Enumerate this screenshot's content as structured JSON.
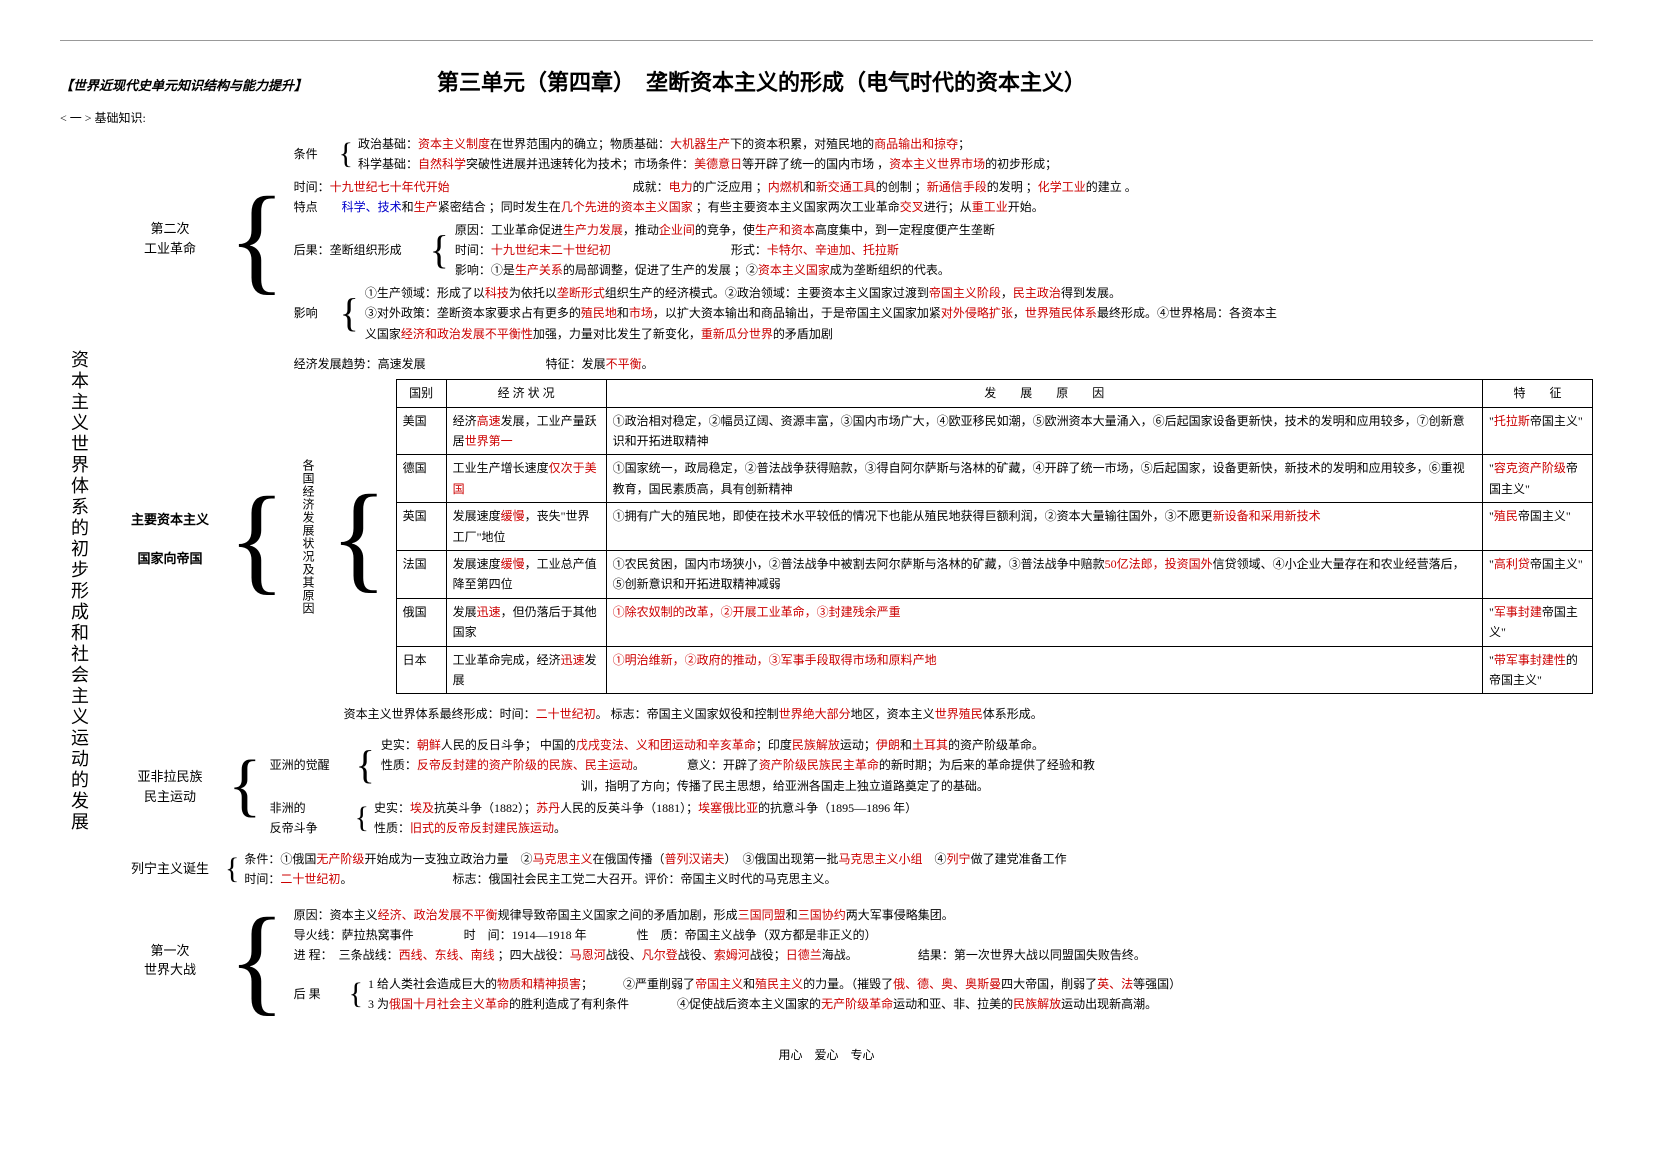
{
  "header": {
    "subtitle": "【世界近现代史单元知识结构与能力提升】",
    "main_title_part1": "第三单元（第四章）",
    "main_title_part2": "垄断资本主义的形成（电气时代的资本主义）",
    "section1": "< 一 > 基础知识:"
  },
  "vertical_title": "资本主义世界体系的初步形成和社会主义运动的发展",
  "second_rev": {
    "label": "第二次\n工业革命",
    "conditions_label": "条件",
    "cond1_pre": "政治基础：",
    "cond1_red1": "资本主义制度",
    "cond1_mid": "在世界范围内的确立；物质基础：",
    "cond1_red2": "大机器生产",
    "cond1_post": "下的资本积累，对殖民地的",
    "cond1_red3": "商品输出和掠夺",
    "cond1_end": "；",
    "cond2_pre": "科学基础：",
    "cond2_red1": "自然科学",
    "cond2_mid1": "突破性进展并迅速转化为技术；市场条件：",
    "cond2_red2": "美德意日",
    "cond2_mid2": "等开辟了统一的国内市场 ，",
    "cond2_red3": "资本主义世界市场",
    "cond2_end": "的初步形成；",
    "time_label": "时间：",
    "time_red": "十九世纪七十年代开始",
    "achieve_label": "成就：",
    "achieve_red1": "电力",
    "achieve_t1": "的广泛应用 ；",
    "achieve_red2": "内燃机",
    "achieve_t2": "和",
    "achieve_red3": "新交通工具",
    "achieve_t3": "的创制 ；",
    "achieve_red4": "新通信手段",
    "achieve_t4": "的发明 ；",
    "achieve_red5": "化学工业",
    "achieve_t5": "的建立 。",
    "feature_label": "特点",
    "feature_blue": "科学、技术",
    "feature_t1": "和",
    "feature_red1": "生产",
    "feature_t2": "紧密结合 ；同时发生在",
    "feature_red2": "几个先进的资本主义国家",
    "feature_t3": " ；有些主要资本主义国家两次工业革命",
    "feature_red3": "交叉",
    "feature_t4": "进行；从",
    "feature_red4": "重工业",
    "feature_t5": "开始。",
    "result_label": "后果：垄断组织形成",
    "result_reason_pre": "原因：工业革命促进",
    "result_reason_red1": "生产力发展",
    "result_reason_mid1": "，推动",
    "result_reason_red2": "企业间",
    "result_reason_mid2": "的竞争，使",
    "result_reason_red3": "生产和资本",
    "result_reason_end": "高度集中，到一定程度便产生垄断",
    "result_time_pre": "时间：",
    "result_time_red": "十九世纪末二十世纪初",
    "result_form_label": "形式：",
    "result_form_red": "卡特尔、辛迪加、托拉斯",
    "result_impact_pre": "影响：①是",
    "result_impact_red1": "生产关系",
    "result_impact_mid": "的局部调整，促进了生产的发展 ；②",
    "result_impact_red2": "资本主义国家",
    "result_impact_end": "成为垄断组织的代表。",
    "impact_label": "影响",
    "impact1_pre": "①生产领域：形成了以",
    "impact1_red1": "科技",
    "impact1_mid1": "为依托以",
    "impact1_red2": "垄断形式",
    "impact1_mid2": "组织生产的经济模式。②政治领域：主要资本主义国家过渡到",
    "impact1_red3": "帝国主义阶段",
    "impact1_mid3": "，",
    "impact1_red4": "民主政治",
    "impact1_end": "得到发展。",
    "impact2_pre": "③对外政策：垄断资本家要求占有更多的",
    "impact2_red1": "殖民地",
    "impact2_mid1": "和",
    "impact2_red2": "市场",
    "impact2_mid2": "，以扩大资本输出和商品输出，于是帝国主义国家加紧",
    "impact2_red3": "对外侵略扩张",
    "impact2_mid3": "，",
    "impact2_red4": "世界殖民体系",
    "impact2_end": "最终形成。④世界格局：各资本主",
    "impact3_pre": "义国家",
    "impact3_red1": "经济和政治发展不平衡性",
    "impact3_mid": "加强，力量对比发生了新变化，",
    "impact3_red2": "重新瓜分世界",
    "impact3_end": "的矛盾加剧"
  },
  "main_cap": {
    "label": "主要资本主义\n\n国家向帝国",
    "trend_label": "经济发展趋势：高速发展",
    "trend_feat_pre": "特征：发展",
    "trend_feat_red": "不平衡",
    "trend_feat_end": "。",
    "vbar_label": "各国经济发展状况及其原因"
  },
  "table": {
    "headers": [
      "国别",
      "经 济 状 况",
      "发展原因",
      "特征"
    ],
    "h3_spaced": "发　　展　　原　　因",
    "h4_spaced": "特　　征",
    "rows": [
      {
        "country": "美国",
        "econ_pre": "经济",
        "econ_red": "高速",
        "econ_mid": "发展，工业产量跃居",
        "econ_red2": "世界第一",
        "reason": "①政治相对稳定，②幅员辽阔、资源丰富，③国内市场广大，④欧亚移民如潮，⑤欧洲资本大量涌入，⑥后起国家设备更新快，技术的发明和应用较多，⑦创新意识和开拓进取精神",
        "feat_pre": "\"",
        "feat_red": "托拉斯",
        "feat_post": "帝国主义\""
      },
      {
        "country": "德国",
        "econ_pre": "工业生产增长速度",
        "econ_red": "仅次于美国",
        "reason_pre": "①国家统一，政局稳定，②普法战争获得赔款，③得自阿尔萨斯与洛林的矿藏，④开辟了统一市场，⑤后起国家，设备更新快，新技术的发明和应用较多，⑥重视教育，国民素质高，具有创新精神",
        "feat_pre": "\"",
        "feat_red": "容克资产阶级",
        "feat_post": "帝国主义\""
      },
      {
        "country": "英国",
        "econ_pre": "发展速度",
        "econ_red": "缓慢",
        "econ_post": "，丧失\"世界工厂\"地位",
        "reason_pre": "①拥有广大的殖民地，即使在技术水平较低的情况下也能从殖民地获得巨额利润，②资本大量输往国外，③不愿更新设备和采用新技术",
        "reason_red": "新设备和采用新技术",
        "feat_pre": "\"",
        "feat_red": "殖民",
        "feat_post": "帝国主义\""
      },
      {
        "country": "法国",
        "econ_pre": "发展速度",
        "econ_red": "缓慢",
        "econ_post": "，工业总产值降至第四位",
        "reason_pre": "①农民贫困，国内市场狭小，②普法战争中被割去阿尔萨斯与洛林的矿藏，③普法战争中赔款",
        "reason_red": "50亿法郎，投资国外",
        "reason_post": "信贷领域、④小企业大量存在和农业经营落后，⑤创新意识和开拓进取精神减弱",
        "feat_pre": "\"",
        "feat_red": "高利贷",
        "feat_post": "帝国主义\""
      },
      {
        "country": "俄国",
        "econ_pre": "发展",
        "econ_red": "迅速",
        "econ_post": "，但仍落后于其他国家",
        "reason": "①除农奴制的改革，②开展工业革命，③封建残余严重",
        "reason_red": "①除农奴制的改革，②开展工业革命，③封建残余严重",
        "feat_pre": "\"",
        "feat_red": "军事封建",
        "feat_post": "帝国主义\""
      },
      {
        "country": "日本",
        "econ_pre": "工业革命完成，经济",
        "econ_red": "迅速",
        "econ_post": "发展",
        "reason": "①明治维新，②政府的推动，③军事手段取得市场和原料产地",
        "reason_red": "①明治维新，②政府的推动，③军事手段取得市场和原料产地",
        "feat_pre": "\"",
        "feat_red": "带军事封建性",
        "feat_post": "的帝国主义\""
      }
    ]
  },
  "world_system": {
    "pre": "资本主义世界体系最终形成：时间：",
    "red1": "二十世纪初",
    "mid1": "。 标志：帝国主义国家奴役和控制",
    "red2": "世界绝大部分",
    "mid2": "地区，资本主义",
    "red3": "世界殖民",
    "end": "体系形成。"
  },
  "asia_africa": {
    "label": "亚非拉民族\n民主运动",
    "asia_label": "亚洲的觉醒",
    "asia_hist_pre": "史实：",
    "asia_hist_red1": "朝鲜",
    "asia_hist_t1": "人民的反日斗争；  中国的",
    "asia_hist_red2": "戊戌变法、义和团运动和辛亥革命",
    "asia_hist_t2": "；印度",
    "asia_hist_red3": "民族解放",
    "asia_hist_t3": "运动；",
    "asia_hist_red4": "伊朗",
    "asia_hist_t4": "和",
    "asia_hist_red5": "土耳其",
    "asia_hist_end": "的资产阶级革命。",
    "asia_nature_pre": "性质：",
    "asia_nature_red": "反帝反封建的资产阶级的民族、民主运动",
    "asia_nature_end": "。",
    "asia_sig_pre": "意义：开辟了",
    "asia_sig_red": "资产阶级民族民主革命",
    "asia_sig_end": "的新时期；为后来的革命提供了经验和教",
    "asia_sig2": "训，指明了方向；传播了民主思想，给亚洲各国走上独立道路奠定了的基础。",
    "africa_label": "非洲的\n反帝斗争",
    "africa_hist_pre": "史实：",
    "africa_hist_red1": "埃及",
    "africa_hist_t1": "抗英斗争（1882）；",
    "africa_hist_red2": "苏丹",
    "africa_hist_t2": "人民的反英斗争（1881）；",
    "africa_hist_red3": "埃塞俄比亚",
    "africa_hist_end": "的抗意斗争（1895—1896 年）",
    "africa_nature_pre": "性质：",
    "africa_nature_red": "旧式的反帝反封建民族运动",
    "africa_nature_end": "。"
  },
  "leninism": {
    "label": "列宁主义诞生",
    "cond_pre": "条件：①俄国",
    "cond_red1": "无产阶级",
    "cond_mid1": "开始成为一支独立政治力量　②",
    "cond_red2": "马克思主义",
    "cond_mid2": "在俄国传播（",
    "cond_red3": "普列汉诺夫",
    "cond_mid3": "）　③俄国出现第一批",
    "cond_red4": "马克思主义小组",
    "cond_mid4": "　④",
    "cond_red5": "列宁",
    "cond_end": "做了建党准备工作",
    "time_pre": "时间：",
    "time_red": "二十世纪初",
    "time_end": "。",
    "mark": "标志：俄国社会民主工党二大召开。评价：帝国主义时代的马克思主义。"
  },
  "ww1": {
    "label": "第一次\n世界大战",
    "cause_pre": "原因：资本主义",
    "cause_red1": "经济、政治发展不平衡",
    "cause_mid": "规律导致帝国主义国家之间的矛盾加剧，形成",
    "cause_red2": "三国同盟",
    "cause_mid2": "和",
    "cause_red3": "三国协约",
    "cause_end": "两大军事侵略集团。",
    "fuse": "导火线：萨拉热窝事件",
    "time": "时　间：1914—1918 年",
    "nature": "性　质：帝国主义战争（双方都是非正义的）",
    "process_label": "进 程：",
    "process_pre": "三条战线：",
    "process_red1": "西线、东线、南线",
    "process_mid": " ；四大战役：",
    "process_red2": "马恩河",
    "process_t1": "战役、",
    "process_red3": "凡尔登",
    "process_t2": "战役、",
    "process_red4": "索姆河",
    "process_t3": "战役；",
    "process_red5": "日德兰",
    "process_end": "海战。",
    "result": "结果：第一次世界大战以同盟国失败告终。",
    "aftermath_label": "后 果",
    "after1_pre": "1  给人类社会造成巨大的",
    "after1_red1": "物质和精神损害",
    "after1_mid": "；　　　②严重削弱了",
    "after1_red2": "帝国主义",
    "after1_mid2": "和",
    "after1_red3": "殖民主义",
    "after1_mid3": "的力量。（摧毁了",
    "after1_red4": "俄、德、奥、奥斯曼",
    "after1_mid4": "四大帝国，削弱了",
    "after1_red5": "英、法",
    "after1_end": "等强国）",
    "after2_pre": "3  为",
    "after2_red1": "俄国十月社会主义革命",
    "after2_mid": "的胜利造成了有利条件　　　　④促使战后资本主义国家的",
    "after2_red2": "无产阶级革命",
    "after2_mid2": "运动和亚、非、拉美的",
    "after2_red3": "民族解放",
    "after2_end": "运动出现新高潮。"
  },
  "footer": "用心　爱心　专心"
}
